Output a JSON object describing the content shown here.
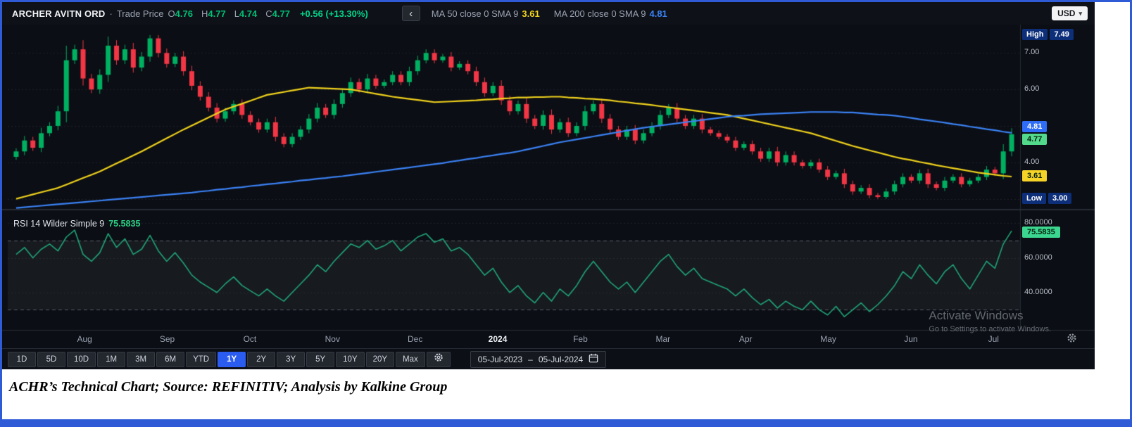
{
  "header": {
    "symbol": "ARCHER AVITN ORD",
    "separator": "·",
    "series_label": "Trade Price",
    "o_label": "O",
    "o": "4.76",
    "h_label": "H",
    "h": "4.77",
    "l_label": "L",
    "l": "4.74",
    "c_label": "C",
    "c": "4.77",
    "change": "+0.56 (+13.30%)",
    "back_icon": "‹",
    "ma50_label": "MA 50 close 0 SMA 9",
    "ma50_value": "3.61",
    "ma200_label": "MA 200 close 0 SMA 9",
    "ma200_value": "4.81",
    "currency": "USD",
    "currency_caret": "▾"
  },
  "axis": {
    "high_label": "High",
    "high_value": "7.49",
    "low_label": "Low",
    "low_value": "3.00",
    "price_ticks": [
      "7.00",
      "6.00",
      "4.00"
    ],
    "price_tick_values": [
      7.0,
      6.0,
      4.0
    ],
    "ma200_badge": "4.81",
    "close_badge": "4.77",
    "ma50_badge": "3.61",
    "rsi_ticks": [
      "80.0000",
      "60.0000",
      "40.0000"
    ],
    "rsi_tick_values": [
      80,
      60,
      40
    ],
    "rsi_badge": "75.5835"
  },
  "rsi_pane": {
    "label": "RSI 14 Wilder Simple 9",
    "value": "75.5835"
  },
  "x_axis": {
    "labels": [
      "Aug",
      "Sep",
      "Oct",
      "Nov",
      "Dec",
      "2024",
      "Feb",
      "Mar",
      "Apr",
      "May",
      "Jun",
      "Jul"
    ],
    "emphasis_index": 5
  },
  "toolbar": {
    "ranges": [
      "1D",
      "5D",
      "10D",
      "1M",
      "3M",
      "6M",
      "YTD",
      "1Y",
      "2Y",
      "3Y",
      "5Y",
      "10Y",
      "20Y",
      "Max"
    ],
    "selected": "1Y",
    "date_from": "05-Jul-2023",
    "date_separator": "–",
    "date_to": "05-Jul-2024"
  },
  "watermark": {
    "line1": "Activate Windows",
    "line2": "Go to Settings to activate Windows."
  },
  "caption": "ACHR’s Technical Chart; Source: REFINITIV; Analysis by Kalkine Group",
  "colors": {
    "up": "#00b061",
    "down": "#f23645",
    "ma50": "#f0d21c",
    "ma200": "#3b82f6",
    "rsi": "#1fa578",
    "badge_high_low": "#0d2f7a",
    "badge_ma200": "#2f6df6",
    "badge_close": "#53d98c",
    "badge_ma50": "#f5d327",
    "badge_rsi": "#3bd68f",
    "selected_range": "#2b5cf0"
  },
  "chart_data": [
    {
      "type": "candlestick",
      "title": "ARCHER AVITN ORD Trade Price",
      "x_labels": [
        "Aug",
        "Sep",
        "Oct",
        "Nov",
        "Dec",
        "2024",
        "Feb",
        "Mar",
        "Apr",
        "May",
        "Jun",
        "Jul"
      ],
      "ylim": [
        2.8,
        7.7
      ],
      "y_ticks": [
        7.0,
        6.0,
        5.0,
        4.0,
        3.0
      ],
      "high": 7.49,
      "low": 3.0,
      "last": {
        "open": 4.76,
        "high": 4.77,
        "low": 4.74,
        "close": 4.77,
        "change_pct": 13.3,
        "change_abs": 0.56
      },
      "close": [
        4.3,
        4.6,
        4.4,
        4.8,
        5.0,
        5.4,
        6.8,
        7.1,
        6.3,
        6.0,
        6.4,
        7.2,
        6.8,
        7.1,
        6.6,
        6.9,
        7.4,
        7.0,
        6.7,
        6.9,
        6.5,
        6.1,
        5.8,
        5.5,
        5.2,
        5.4,
        5.6,
        5.3,
        5.1,
        4.9,
        5.1,
        4.7,
        4.5,
        4.7,
        4.9,
        5.2,
        5.5,
        5.3,
        5.6,
        5.9,
        6.2,
        6.0,
        6.3,
        6.1,
        6.2,
        6.4,
        6.2,
        6.5,
        6.8,
        7.0,
        6.8,
        6.9,
        6.6,
        6.7,
        6.5,
        6.2,
        5.9,
        6.1,
        5.7,
        5.4,
        5.6,
        5.2,
        5.0,
        5.3,
        4.9,
        5.1,
        4.8,
        5.0,
        5.4,
        5.6,
        5.2,
        4.9,
        4.7,
        4.9,
        4.6,
        4.8,
        5.0,
        5.3,
        5.5,
        5.2,
        5.0,
        5.2,
        4.9,
        4.8,
        4.7,
        4.6,
        4.4,
        4.5,
        4.3,
        4.1,
        4.3,
        4.0,
        4.2,
        4.0,
        3.9,
        4.0,
        3.8,
        3.6,
        3.7,
        3.4,
        3.2,
        3.3,
        3.1,
        3.05,
        3.2,
        3.4,
        3.6,
        3.5,
        3.7,
        3.4,
        3.3,
        3.5,
        3.6,
        3.4,
        3.5,
        3.6,
        3.8,
        3.7,
        4.3,
        4.77
      ],
      "series": [
        {
          "name": "MA 50 close 0 SMA 9",
          "current": 3.61,
          "color": "#f0d21c",
          "values": [
            3.0,
            3.06,
            3.12,
            3.18,
            3.24,
            3.3,
            3.39,
            3.48,
            3.57,
            3.66,
            3.75,
            3.86,
            3.97,
            4.08,
            4.19,
            4.3,
            4.42,
            4.54,
            4.66,
            4.78,
            4.9,
            5.01,
            5.12,
            5.23,
            5.34,
            5.45,
            5.53,
            5.61,
            5.69,
            5.77,
            5.85,
            5.89,
            5.93,
            5.97,
            6.01,
            6.05,
            6.04,
            6.03,
            6.02,
            6.01,
            6.0,
            5.96,
            5.92,
            5.88,
            5.84,
            5.8,
            5.77,
            5.74,
            5.71,
            5.68,
            5.65,
            5.66,
            5.67,
            5.68,
            5.69,
            5.7,
            5.72,
            5.73,
            5.75,
            5.76,
            5.78,
            5.78,
            5.79,
            5.79,
            5.8,
            5.8,
            5.78,
            5.77,
            5.75,
            5.74,
            5.72,
            5.7,
            5.67,
            5.65,
            5.62,
            5.6,
            5.57,
            5.54,
            5.51,
            5.48,
            5.45,
            5.42,
            5.39,
            5.36,
            5.33,
            5.3,
            5.25,
            5.2,
            5.15,
            5.1,
            5.05,
            5.0,
            4.95,
            4.9,
            4.85,
            4.8,
            4.73,
            4.66,
            4.59,
            4.52,
            4.45,
            4.39,
            4.33,
            4.27,
            4.21,
            4.15,
            4.1,
            4.06,
            4.01,
            3.97,
            3.92,
            3.88,
            3.84,
            3.8,
            3.76,
            3.72,
            3.69,
            3.66,
            3.63,
            3.61
          ]
        },
        {
          "name": "MA 200 close 0 SMA 9",
          "current": 4.81,
          "color": "#3b82f6",
          "values": [
            2.75,
            2.77,
            2.79,
            2.81,
            2.83,
            2.85,
            2.87,
            2.89,
            2.91,
            2.93,
            2.95,
            2.97,
            2.99,
            3.01,
            3.03,
            3.05,
            3.07,
            3.09,
            3.11,
            3.13,
            3.15,
            3.17,
            3.2,
            3.22,
            3.25,
            3.27,
            3.3,
            3.32,
            3.35,
            3.37,
            3.4,
            3.42,
            3.45,
            3.47,
            3.5,
            3.52,
            3.55,
            3.57,
            3.6,
            3.62,
            3.65,
            3.68,
            3.71,
            3.74,
            3.77,
            3.8,
            3.83,
            3.86,
            3.89,
            3.92,
            3.95,
            3.98,
            4.02,
            4.05,
            4.09,
            4.12,
            4.16,
            4.19,
            4.23,
            4.26,
            4.3,
            4.35,
            4.4,
            4.45,
            4.5,
            4.55,
            4.59,
            4.63,
            4.67,
            4.71,
            4.75,
            4.79,
            4.83,
            4.87,
            4.91,
            4.95,
            4.98,
            5.01,
            5.04,
            5.07,
            5.1,
            5.13,
            5.16,
            5.19,
            5.22,
            5.25,
            5.27,
            5.28,
            5.3,
            5.32,
            5.33,
            5.34,
            5.35,
            5.36,
            5.37,
            5.38,
            5.38,
            5.38,
            5.38,
            5.37,
            5.37,
            5.35,
            5.33,
            5.31,
            5.3,
            5.28,
            5.25,
            5.22,
            5.18,
            5.15,
            5.12,
            5.09,
            5.05,
            5.02,
            4.98,
            4.95,
            4.91,
            4.88,
            4.84,
            4.81
          ]
        }
      ]
    },
    {
      "type": "line",
      "title": "RSI 14 Wilder Simple 9",
      "current": 75.5835,
      "ylim": [
        20,
        85
      ],
      "y_ticks": [
        80,
        60,
        40
      ],
      "guides": [
        70,
        30
      ],
      "color": "#1fa578",
      "values": [
        62,
        66,
        60,
        65,
        68,
        64,
        72,
        76,
        62,
        58,
        63,
        74,
        66,
        71,
        62,
        65,
        73,
        64,
        58,
        63,
        57,
        50,
        46,
        43,
        40,
        45,
        49,
        44,
        41,
        38,
        42,
        38,
        35,
        40,
        45,
        50,
        56,
        52,
        58,
        63,
        68,
        66,
        70,
        65,
        67,
        70,
        64,
        68,
        72,
        74,
        69,
        71,
        64,
        66,
        62,
        56,
        50,
        54,
        46,
        40,
        44,
        38,
        34,
        40,
        35,
        42,
        38,
        44,
        52,
        58,
        52,
        46,
        42,
        46,
        40,
        46,
        52,
        58,
        62,
        55,
        50,
        54,
        48,
        46,
        44,
        42,
        38,
        42,
        37,
        33,
        36,
        31,
        35,
        32,
        30,
        35,
        30,
        27,
        32,
        26,
        30,
        34,
        29,
        33,
        38,
        44,
        52,
        48,
        56,
        50,
        45,
        52,
        56,
        48,
        42,
        50,
        58,
        54,
        68,
        75.5835
      ]
    }
  ]
}
